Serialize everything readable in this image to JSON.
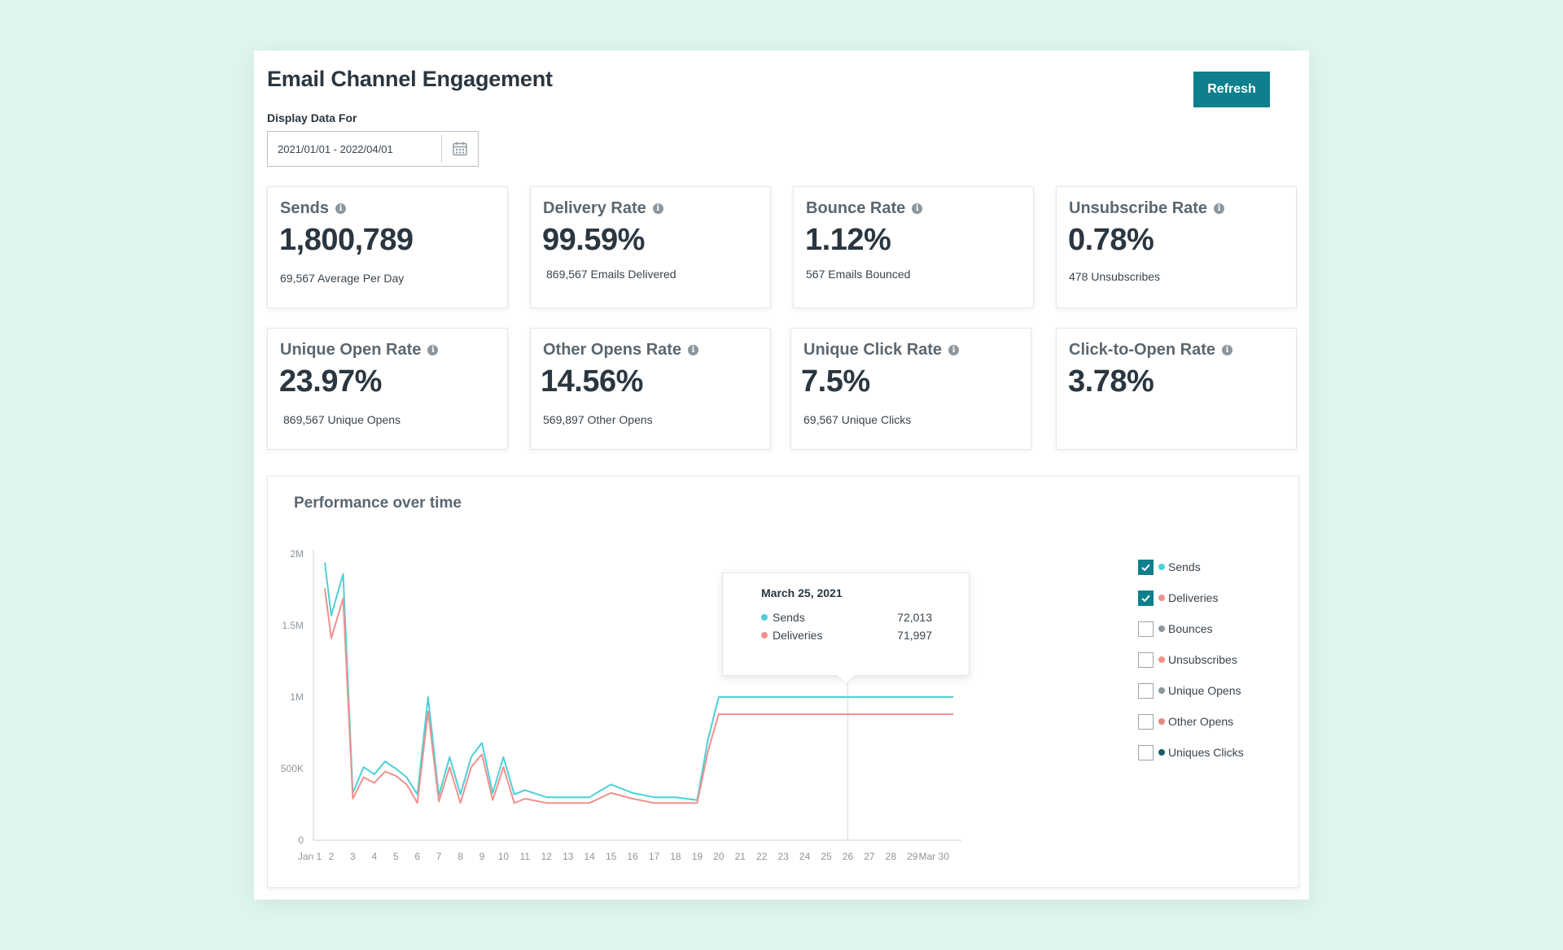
{
  "header": {
    "title": "Email Channel Engagement",
    "refresh_label": "Refresh",
    "date_label": "Display Data For",
    "date_value": "2021/01/01 - 2022/04/01"
  },
  "cards": [
    {
      "label": "Sends",
      "value": "1,800,789",
      "sub": "69,567 Average Per Day"
    },
    {
      "label": "Delivery Rate",
      "value": "99.59%",
      "sub": "869,567 Emails Delivered"
    },
    {
      "label": "Bounce Rate",
      "value": "1.12%",
      "sub": "567 Emails Bounced"
    },
    {
      "label": "Unsubscribe Rate",
      "value": "0.78%",
      "sub": "478 Unsubscribes"
    },
    {
      "label": "Unique Open Rate",
      "value": "23.97%",
      "sub": "869,567 Unique Opens"
    },
    {
      "label": "Other Opens Rate",
      "value": "14.56%",
      "sub": "569,897 Other Opens"
    },
    {
      "label": "Unique Click Rate",
      "value": "7.5%",
      "sub": "69,567 Unique Clicks"
    },
    {
      "label": "Click-to-Open Rate",
      "value": "3.78%",
      "sub": ""
    }
  ],
  "info_glyph": "i",
  "colors": {
    "accent": "#0e7f8c",
    "sends": "#4dd0d6",
    "deliveries": "#f0918e",
    "grey": "#8c969d",
    "dark_teal": "#1e5d66"
  },
  "legend": [
    {
      "label": "Sends",
      "checked": true,
      "color": "#4dd0d6"
    },
    {
      "label": "Deliveries",
      "checked": true,
      "color": "#f0918e"
    },
    {
      "label": "Bounces",
      "checked": false,
      "color": "#8c969d"
    },
    {
      "label": "Unsubscribes",
      "checked": false,
      "color": "#f0918e"
    },
    {
      "label": "Unique Opens",
      "checked": false,
      "color": "#8c969d"
    },
    {
      "label": "Other Opens",
      "checked": false,
      "color": "#e08a86"
    },
    {
      "label": "Uniques Clicks",
      "checked": false,
      "color": "#1e5d66"
    }
  ],
  "tooltip": {
    "date": "March 25, 2021",
    "rows": [
      {
        "label": "Sends",
        "value": "72,013"
      },
      {
        "label": "Deliveries",
        "value": "71,997"
      }
    ]
  },
  "chart_data": {
    "type": "line",
    "title": "Performance over time",
    "x": [
      "Jan 1",
      "2",
      "3",
      "4",
      "5",
      "6",
      "7",
      "8",
      "9",
      "10",
      "11",
      "12",
      "13",
      "14",
      "15",
      "16",
      "17",
      "18",
      "19",
      "20",
      "21",
      "22",
      "23",
      "24",
      "25",
      "26",
      "27",
      "28",
      "29",
      "Mar 30"
    ],
    "y_ticks": [
      {
        "value": 0,
        "label": "0"
      },
      {
        "value": 500000,
        "label": "500K"
      },
      {
        "value": 1000000,
        "label": "1M"
      },
      {
        "value": 1500000,
        "label": "1.5M"
      },
      {
        "value": 2000000,
        "label": "2M"
      }
    ],
    "ylim": [
      0,
      2000000
    ],
    "x_start": 0.7,
    "x_end": 29.9,
    "highlight_x": 25,
    "series": [
      {
        "name": "Sends",
        "points": [
          [
            0.7,
            1940000
          ],
          [
            1.0,
            1570000
          ],
          [
            1.55,
            1860000
          ],
          [
            2.0,
            330000
          ],
          [
            2.5,
            510000
          ],
          [
            3.0,
            460000
          ],
          [
            3.5,
            550000
          ],
          [
            4.0,
            500000
          ],
          [
            4.5,
            440000
          ],
          [
            5.0,
            320000
          ],
          [
            5.5,
            1000000
          ],
          [
            6.0,
            310000
          ],
          [
            6.5,
            580000
          ],
          [
            7.0,
            320000
          ],
          [
            7.5,
            580000
          ],
          [
            8.0,
            680000
          ],
          [
            8.5,
            330000
          ],
          [
            9.0,
            580000
          ],
          [
            9.5,
            320000
          ],
          [
            10,
            350000
          ],
          [
            11,
            300000
          ],
          [
            12,
            300000
          ],
          [
            13,
            300000
          ],
          [
            14,
            390000
          ],
          [
            15,
            330000
          ],
          [
            16,
            300000
          ],
          [
            17,
            300000
          ],
          [
            18,
            280000
          ],
          [
            18.5,
            700000
          ],
          [
            19.0,
            1000000
          ],
          [
            29.9,
            1000000
          ]
        ]
      },
      {
        "name": "Deliveries",
        "points": [
          [
            0.7,
            1760000
          ],
          [
            1.0,
            1410000
          ],
          [
            1.55,
            1690000
          ],
          [
            2.0,
            290000
          ],
          [
            2.5,
            440000
          ],
          [
            3.0,
            400000
          ],
          [
            3.5,
            480000
          ],
          [
            4.0,
            450000
          ],
          [
            4.5,
            390000
          ],
          [
            5.0,
            260000
          ],
          [
            5.5,
            900000
          ],
          [
            6.0,
            270000
          ],
          [
            6.5,
            510000
          ],
          [
            7.0,
            260000
          ],
          [
            7.5,
            510000
          ],
          [
            8.0,
            600000
          ],
          [
            8.5,
            280000
          ],
          [
            9.0,
            510000
          ],
          [
            9.5,
            260000
          ],
          [
            10,
            290000
          ],
          [
            11,
            260000
          ],
          [
            12,
            260000
          ],
          [
            13,
            260000
          ],
          [
            14,
            330000
          ],
          [
            15,
            290000
          ],
          [
            16,
            260000
          ],
          [
            17,
            260000
          ],
          [
            18,
            260000
          ],
          [
            18.5,
            620000
          ],
          [
            19.0,
            880000
          ],
          [
            29.9,
            880000
          ]
        ]
      }
    ]
  }
}
